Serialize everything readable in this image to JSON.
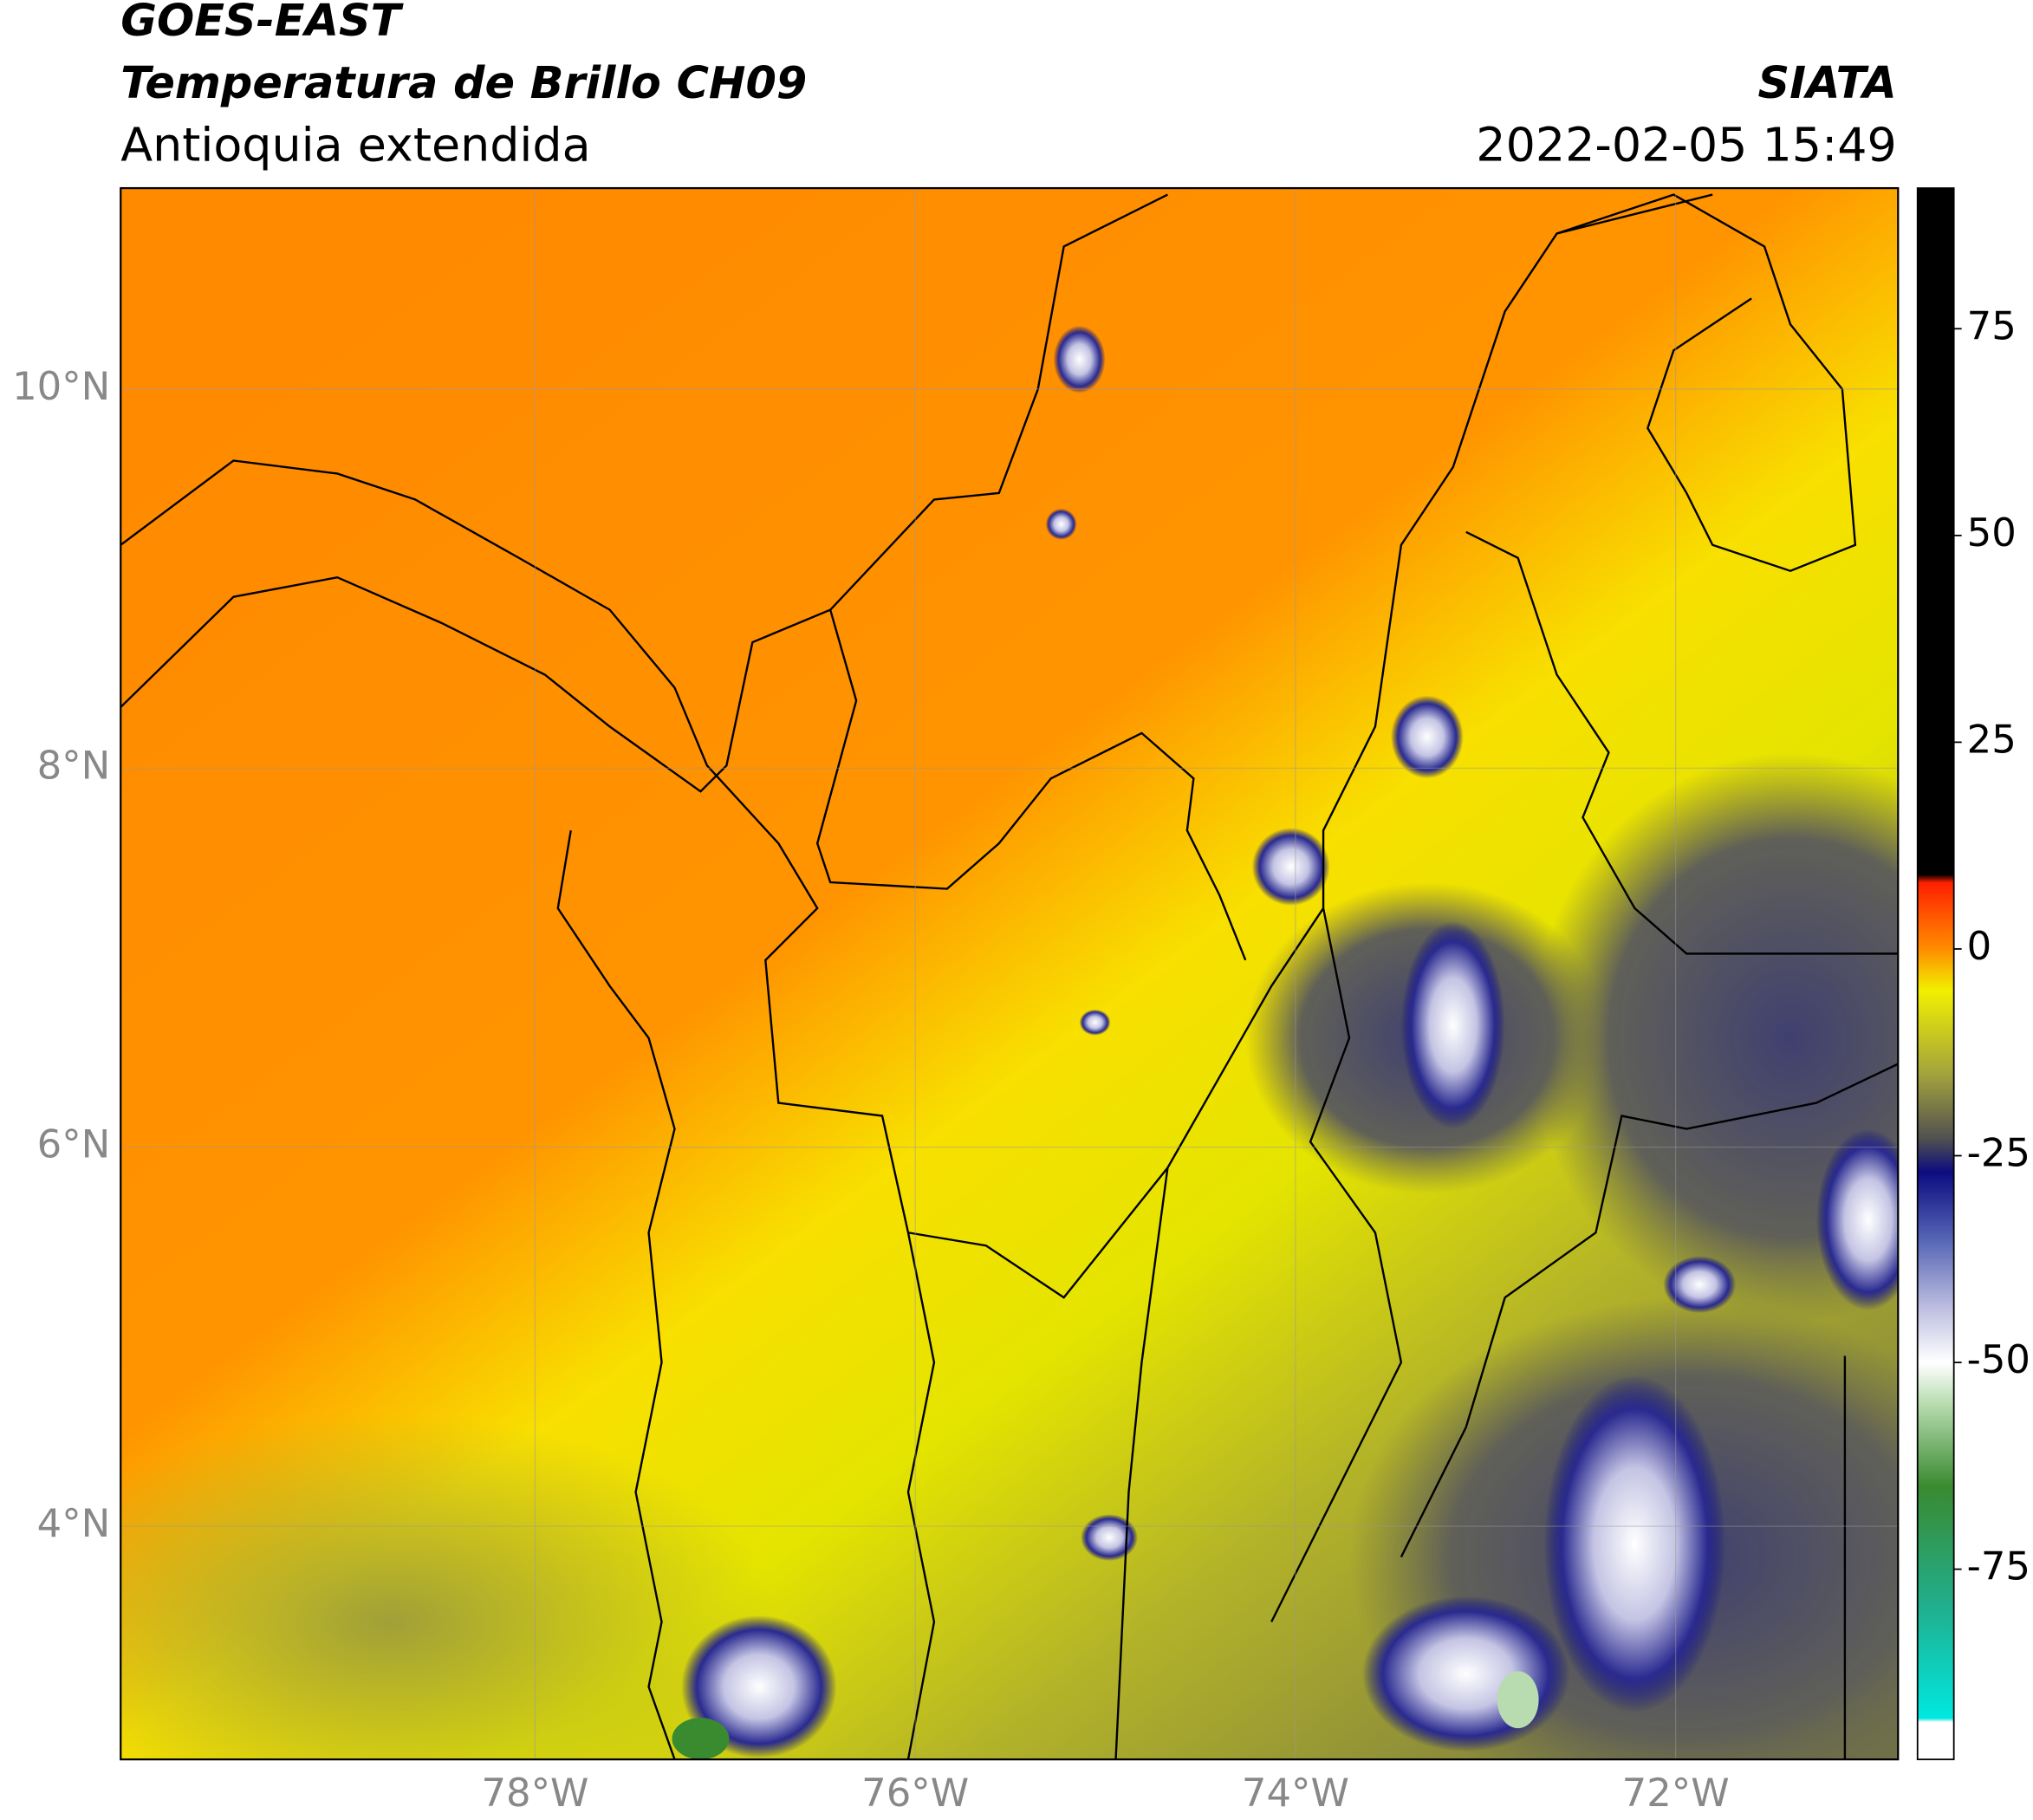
{
  "header": {
    "title": "GOES-EAST",
    "subtitle": "Temperatura de Brillo CH09",
    "region": "Antioquia extendida",
    "source": "SIATA",
    "datetime": "2022-02-05 15:49"
  },
  "map": {
    "xlim": [
      -80.18,
      -70.83
    ],
    "ylim": [
      2.77,
      11.06
    ],
    "xticks": [
      {
        "value": -78,
        "label": "78°W"
      },
      {
        "value": -76,
        "label": "76°W"
      },
      {
        "value": -74,
        "label": "74°W"
      },
      {
        "value": -72,
        "label": "72°W"
      }
    ],
    "yticks": [
      {
        "value": 4,
        "label": "4°N"
      },
      {
        "value": 6,
        "label": "6°N"
      },
      {
        "value": 8,
        "label": "8°N"
      },
      {
        "value": 10,
        "label": "10°N"
      }
    ],
    "grid": true
  },
  "colorbar": {
    "lim": [
      -98,
      92
    ],
    "ticks": [
      -75,
      -50,
      -25,
      0,
      25,
      50,
      75
    ],
    "stops": [
      {
        "value": -98,
        "color": "#ffffff"
      },
      {
        "value": -93.5,
        "color": "#ffffff"
      },
      {
        "value": -93,
        "color": "#00e8e0"
      },
      {
        "value": -80,
        "color": "#20b090"
      },
      {
        "value": -65,
        "color": "#3a8a30"
      },
      {
        "value": -55,
        "color": "#b8dcb0"
      },
      {
        "value": -50,
        "color": "#ffffff"
      },
      {
        "value": -44,
        "color": "#c4c4e4"
      },
      {
        "value": -35,
        "color": "#5464b4"
      },
      {
        "value": -27,
        "color": "#0c0c80"
      },
      {
        "value": -23,
        "color": "#505050"
      },
      {
        "value": -15,
        "color": "#a4a43c"
      },
      {
        "value": -5,
        "color": "#f2f000"
      },
      {
        "value": 0,
        "color": "#ff8c00"
      },
      {
        "value": 8,
        "color": "#ff2000"
      },
      {
        "value": 9,
        "color": "#000000"
      },
      {
        "value": 92,
        "color": "#000000"
      }
    ]
  }
}
